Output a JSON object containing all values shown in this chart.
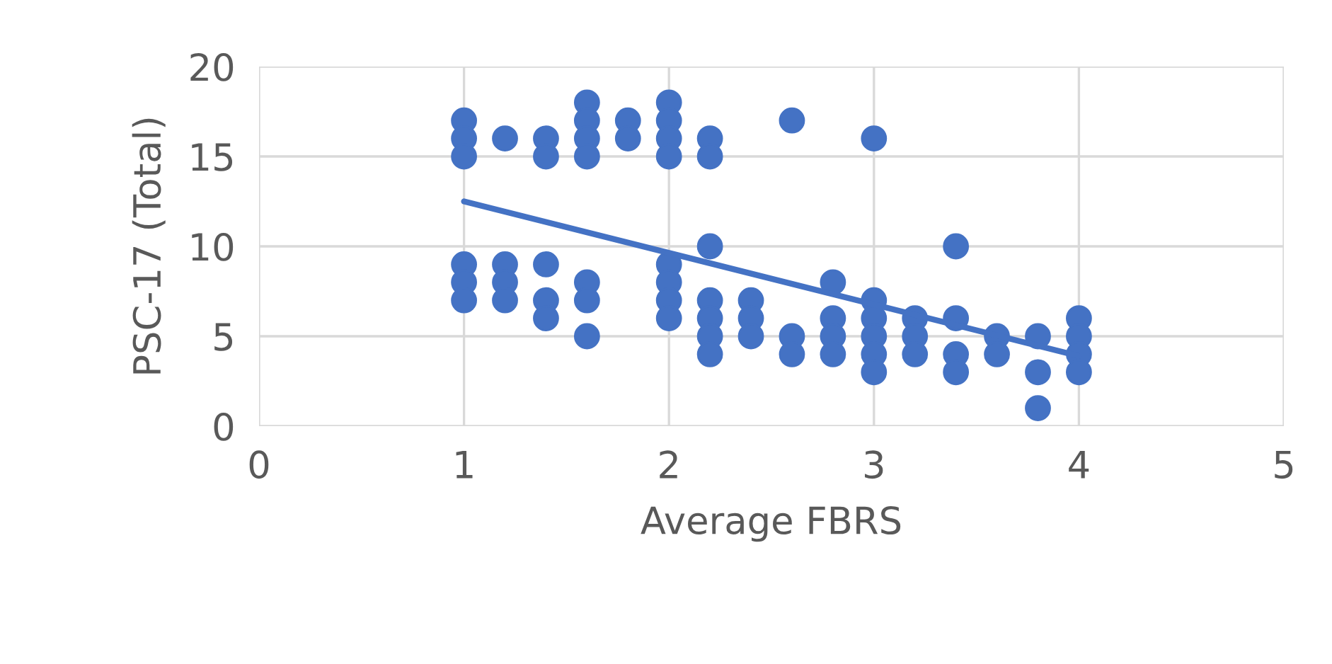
{
  "chart_data": {
    "type": "scatter",
    "xlabel": "Average FBRS",
    "ylabel": "PSC-17 (Total)",
    "series": [
      {
        "color": "#4472c4",
        "marker": "circle",
        "x": [
          1,
          1,
          1,
          1,
          1,
          1,
          1.2,
          1.2,
          1.2,
          1.2,
          1.4,
          1.4,
          1.4,
          1.4,
          1.4,
          1.6,
          1.6,
          1.6,
          1.6,
          1.6,
          1.6,
          1.6,
          1.8,
          1.8,
          2,
          2,
          2,
          2,
          2,
          2,
          2,
          2,
          2.2,
          2.2,
          2.2,
          2.2,
          2.2,
          2.2,
          2.2,
          2.4,
          2.4,
          2.4,
          2.6,
          2.6,
          2.6,
          2.8,
          2.8,
          2.8,
          2.8,
          3,
          3,
          3,
          3,
          3,
          3,
          3.2,
          3.2,
          3.2,
          3.4,
          3.4,
          3.4,
          3.4,
          3.6,
          3.6,
          3.8,
          3.8,
          3.8,
          4,
          4,
          4,
          4
        ],
        "values": [
          17,
          16,
          15,
          9,
          8,
          7,
          16,
          9,
          8,
          7,
          16,
          15,
          9,
          7,
          6,
          18,
          17,
          16,
          15,
          8,
          7,
          5,
          17,
          16,
          18,
          17,
          16,
          15,
          9,
          8,
          7,
          6,
          16,
          15,
          10,
          7,
          6,
          5,
          4,
          7,
          6,
          5,
          17,
          5,
          4,
          8,
          6,
          5,
          4,
          16,
          7,
          6,
          5,
          4,
          3,
          6,
          5,
          4,
          10,
          6,
          4,
          3,
          5,
          4,
          5,
          3,
          1,
          6,
          5,
          4,
          3
        ]
      },
      {
        "type": "line",
        "color": "#4472c4",
        "marker": "none",
        "x": [
          1,
          4
        ],
        "values": [
          12.5,
          3.9
        ]
      }
    ],
    "xlim": [
      0,
      5
    ],
    "xticks": [
      0,
      1,
      2,
      3,
      4,
      5
    ],
    "ylim": [
      0,
      20
    ],
    "yticks": [
      0,
      5,
      10,
      15,
      20
    ],
    "grid": true
  }
}
